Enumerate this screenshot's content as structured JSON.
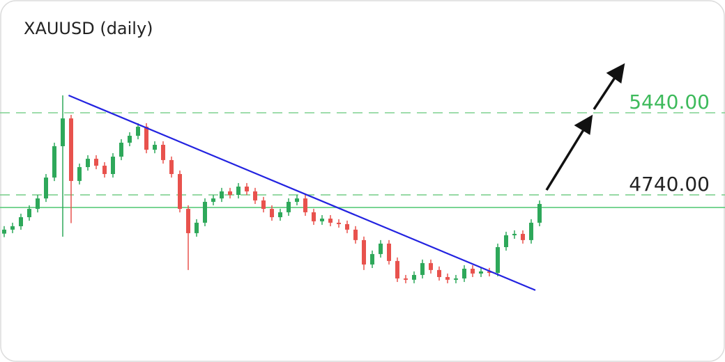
{
  "chart_data": {
    "type": "candlestick",
    "title": "XAUUSD (daily)",
    "ylim": [
      3500,
      6000
    ],
    "up_color": "#2ea85a",
    "down_color": "#e8524d",
    "open": [
      4410,
      4444,
      4473,
      4550,
      4621,
      4710,
      4888,
      5155,
      5392,
      4859,
      4977,
      5048,
      4989,
      4918,
      5066,
      5185,
      5244,
      5321,
      5125,
      5167,
      5037,
      4918,
      4621,
      4414,
      4503,
      4681,
      4710,
      4770,
      4740,
      4811,
      4770,
      4693,
      4621,
      4550,
      4592,
      4681,
      4710,
      4592,
      4515,
      4538,
      4503,
      4491,
      4444,
      4355,
      4147,
      4236,
      4325,
      4177,
      4028,
      4017,
      4058,
      4159,
      4100,
      4040,
      4017,
      4028,
      4111,
      4070,
      4088,
      4076,
      4295,
      4396,
      4408,
      4355,
      4503
    ],
    "high": [
      4474,
      4503,
      4580,
      4651,
      4740,
      4918,
      5185,
      5588,
      5422,
      5007,
      5078,
      5078,
      5019,
      5096,
      5215,
      5274,
      5351,
      5351,
      5197,
      5197,
      5067,
      4948,
      4651,
      4533,
      4711,
      4740,
      4800,
      4800,
      4841,
      4841,
      4800,
      4723,
      4651,
      4622,
      4711,
      4740,
      4740,
      4622,
      4568,
      4568,
      4533,
      4521,
      4474,
      4385,
      4266,
      4355,
      4355,
      4207,
      4058,
      4088,
      4189,
      4189,
      4130,
      4070,
      4058,
      4141,
      4141,
      4118,
      4118,
      4325,
      4426,
      4438,
      4438,
      4533,
      4693
    ],
    "low": [
      4380,
      4414,
      4443,
      4520,
      4591,
      4680,
      4858,
      4384,
      4500,
      4829,
      4947,
      4959,
      4888,
      4888,
      5036,
      5155,
      5214,
      5095,
      5095,
      5007,
      4888,
      4591,
      4100,
      4384,
      4473,
      4651,
      4680,
      4710,
      4710,
      4740,
      4663,
      4591,
      4520,
      4520,
      4562,
      4651,
      4562,
      4485,
      4485,
      4473,
      4461,
      4414,
      4325,
      4100,
      4117,
      4206,
      4147,
      3998,
      3987,
      3987,
      4028,
      4070,
      4010,
      3987,
      3987,
      3998,
      4040,
      4040,
      4046,
      4046,
      4265,
      4366,
      4325,
      4325,
      4473
    ],
    "close": [
      4444,
      4473,
      4550,
      4621,
      4710,
      4888,
      5155,
      5392,
      4859,
      4977,
      5048,
      4989,
      4918,
      5066,
      5185,
      5244,
      5321,
      5125,
      5167,
      5037,
      4918,
      4621,
      4414,
      4503,
      4681,
      4710,
      4770,
      4740,
      4811,
      4770,
      4693,
      4621,
      4550,
      4592,
      4681,
      4710,
      4592,
      4515,
      4538,
      4503,
      4491,
      4444,
      4355,
      4147,
      4236,
      4325,
      4177,
      4028,
      4017,
      4058,
      4159,
      4100,
      4040,
      4017,
      4028,
      4111,
      4070,
      4088,
      4076,
      4295,
      4396,
      4408,
      4355,
      4503,
      4663
    ],
    "levels": [
      {
        "value": 5440,
        "label": "5440.00",
        "color": "#3dba5b"
      },
      {
        "value": 4740,
        "label": "4740.00",
        "color": "#222222"
      }
    ],
    "level_line_color": "#7fd08f",
    "support": {
      "value": 4633,
      "color": "#5ccc7c"
    },
    "trendline": {
      "start": [
        7.7,
        5588
      ],
      "end": [
        63.5,
        3928
      ],
      "color": "#2323e0"
    }
  }
}
